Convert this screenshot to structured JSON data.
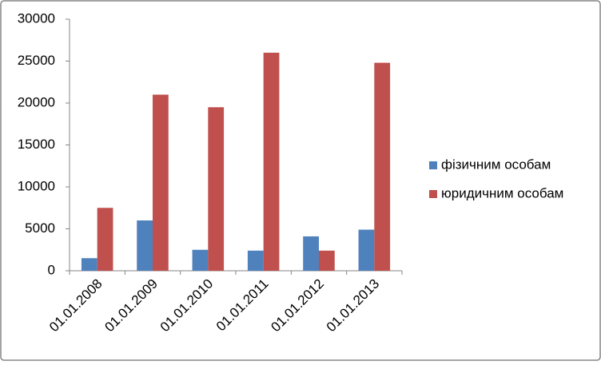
{
  "chart_data": {
    "type": "bar",
    "categories": [
      "01.01.2008",
      "01.01.2009",
      "01.01.2010",
      "01.01.2011",
      "01.01.2012",
      "01.01.2013"
    ],
    "series": [
      {
        "name": "фізичним особам",
        "color": "#4f81bd",
        "values": [
          1500,
          6000,
          2500,
          2400,
          4100,
          4900
        ]
      },
      {
        "name": "юридичним особам",
        "color": "#c0504d",
        "values": [
          7500,
          21000,
          19500,
          26000,
          2400,
          24800
        ]
      }
    ],
    "ylim": [
      0,
      30000
    ],
    "yticks": [
      0,
      5000,
      10000,
      15000,
      20000,
      25000,
      30000
    ],
    "grid": false,
    "legend": "right"
  }
}
